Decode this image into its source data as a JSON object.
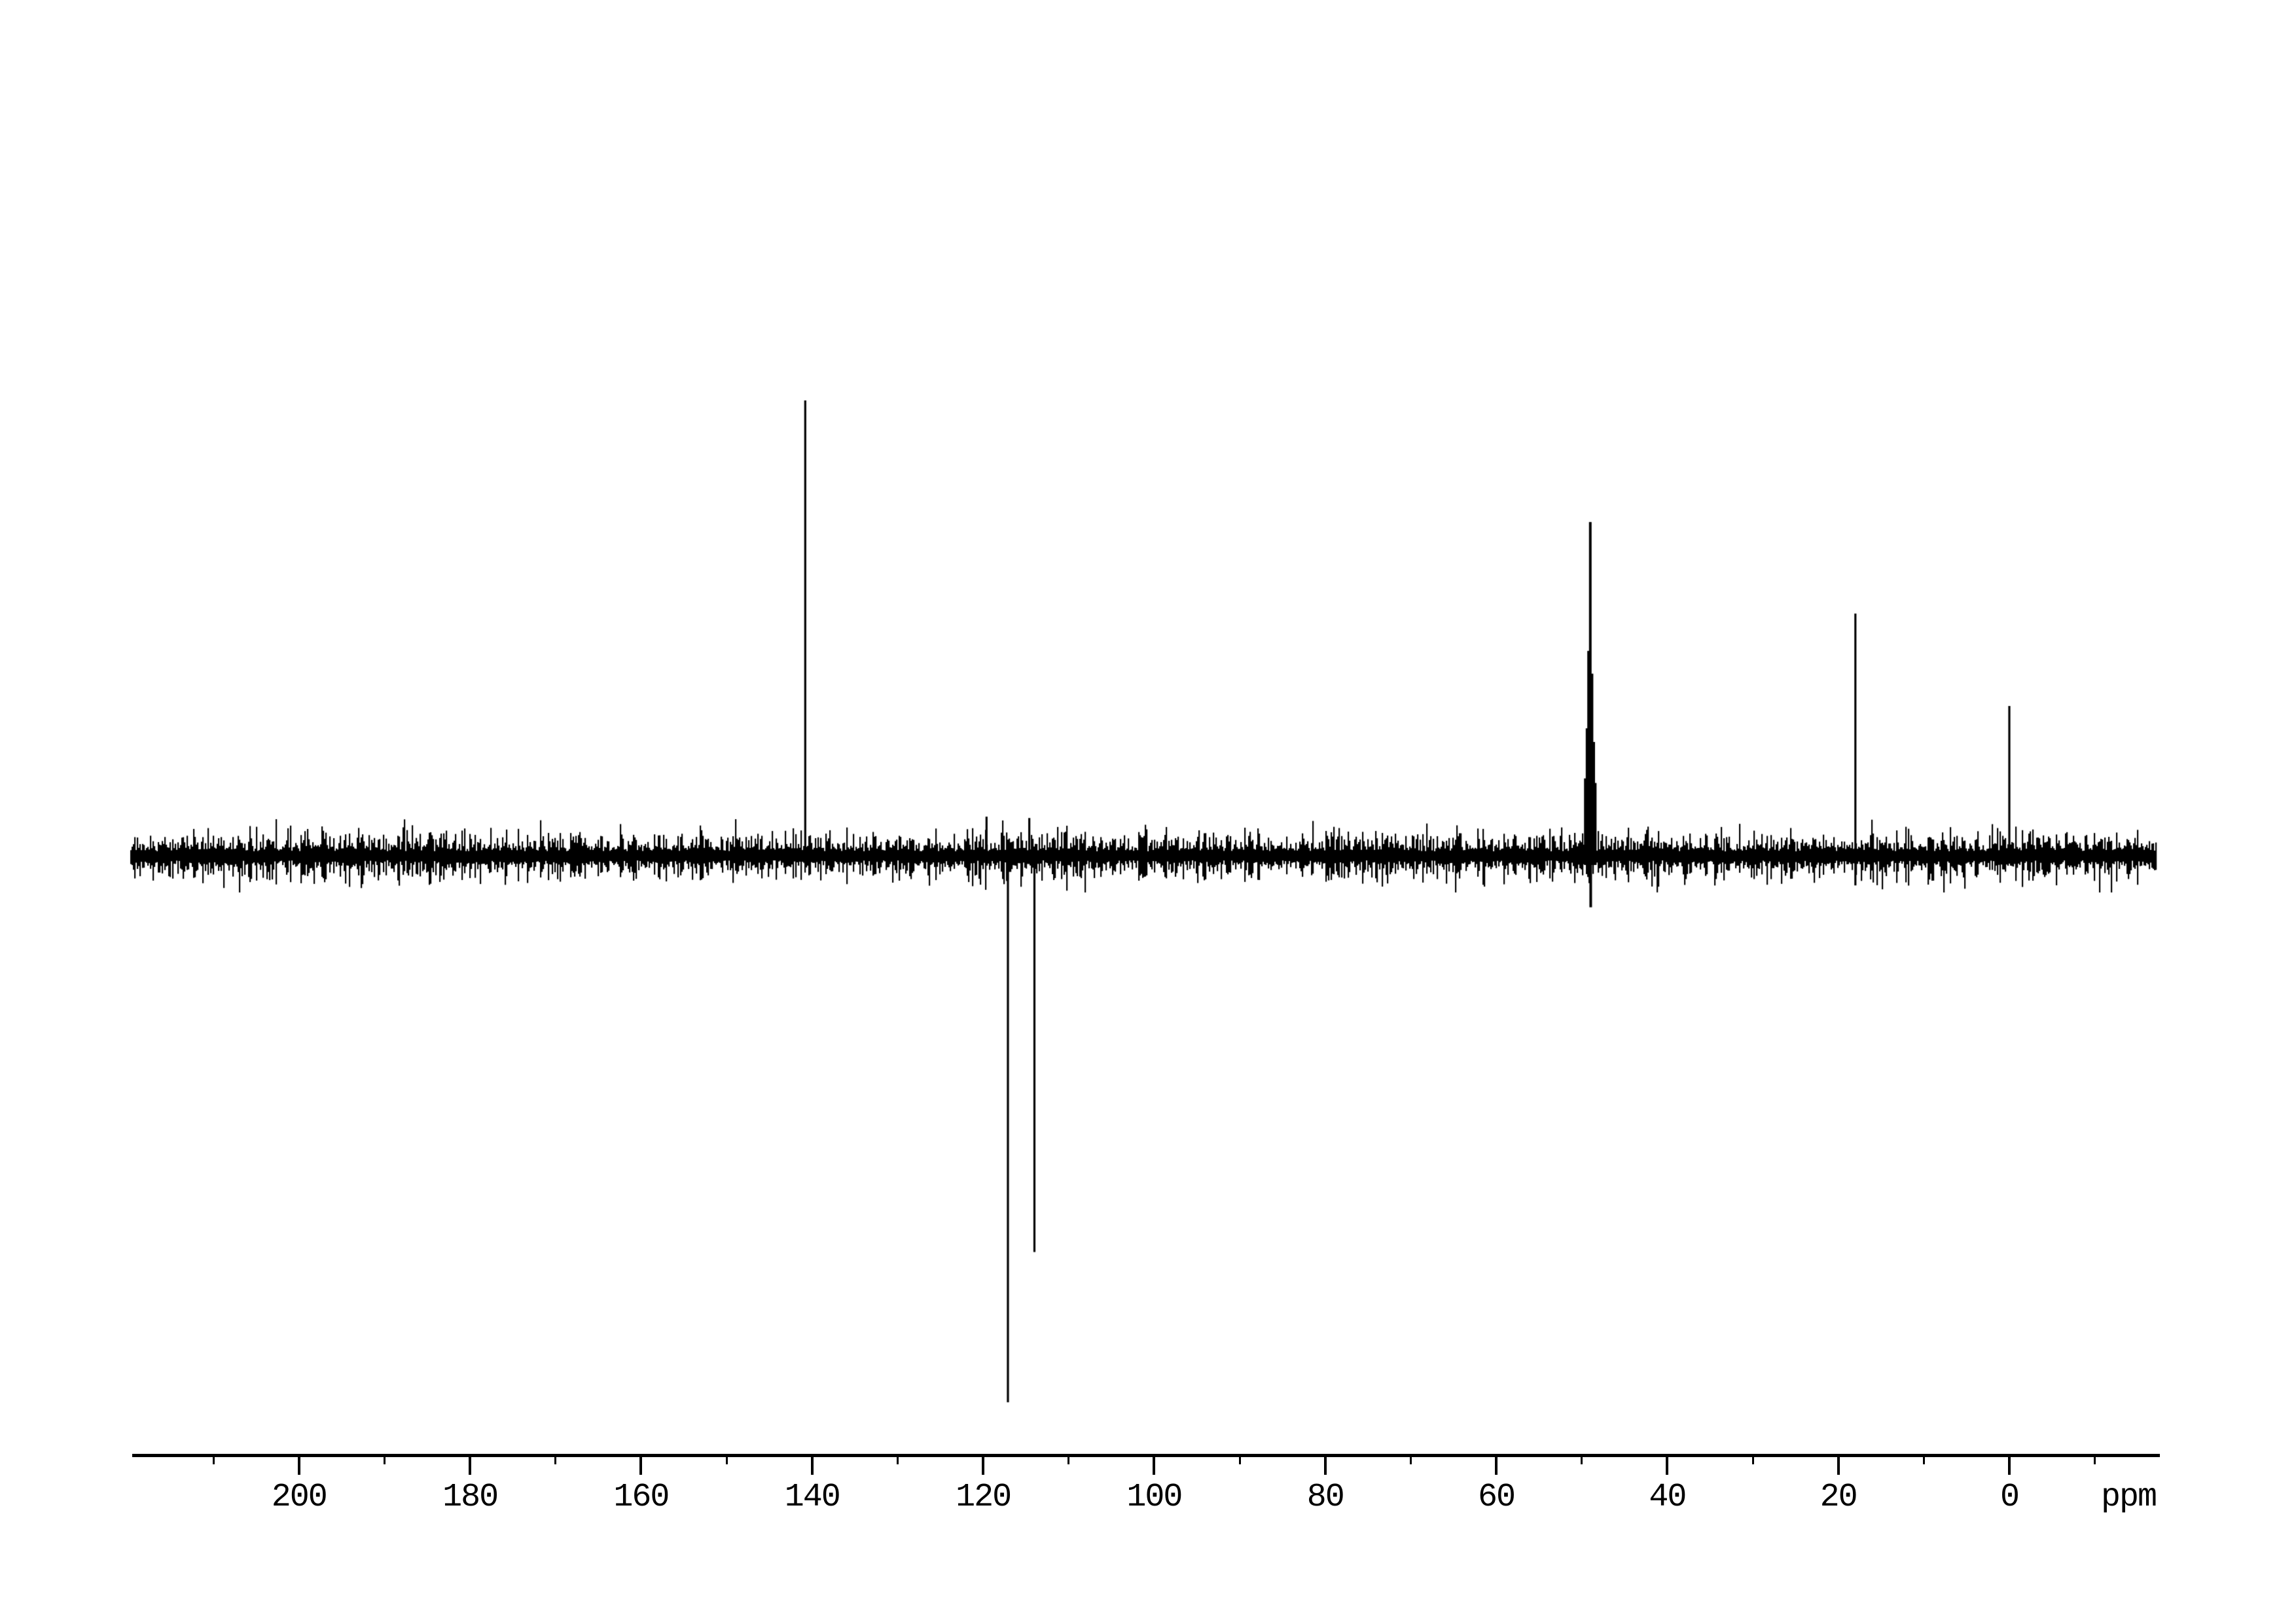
{
  "chart_data": {
    "type": "line",
    "subtype": "13C DEPT NMR spectrum",
    "title": "",
    "xlabel": "ppm",
    "ylabel": "",
    "x_axis": {
      "unit_label": "ppm",
      "range_ppm": [
        219.5,
        -17.6
      ],
      "direction": "values decrease to the right",
      "major_tick_labels": [
        200,
        180,
        160,
        140,
        120,
        100,
        80,
        60,
        40,
        20,
        0
      ],
      "minor_ticks": [
        210,
        190,
        170,
        150,
        130,
        110,
        90,
        70,
        50,
        30,
        10,
        -10
      ],
      "grid": false
    },
    "baseline": {
      "intensity": 0,
      "noise_amplitude_fraction": 0.045,
      "extent_ppm": [
        219.7,
        -17.1
      ]
    },
    "peaks": [
      {
        "ppm": 140.8,
        "intensity": 1.0,
        "direction": "up"
      },
      {
        "ppm": 119.6,
        "intensity": 0.086,
        "direction": "up"
      },
      {
        "ppm": 117.1,
        "intensity": -1.2,
        "direction": "down"
      },
      {
        "ppm": 114.6,
        "intensity": 0.083,
        "direction": "up"
      },
      {
        "ppm": 114.0,
        "intensity": -0.87,
        "direction": "down",
        "note": "second CH2 peak, pointing down"
      },
      {
        "ppm": 49.0,
        "intensity": 0.733,
        "direction": "up",
        "note": "solvent multiplet cluster with dispersive shape",
        "down_tail": -0.113,
        "lines": [
          {
            "dppm": 0.58,
            "intensity": 0.17
          },
          {
            "dppm": 0.38,
            "intensity": 0.28
          },
          {
            "dppm": 0.2,
            "intensity": 0.45
          },
          {
            "dppm": 0.0,
            "intensity": 0.733
          },
          {
            "dppm": -0.2,
            "intensity": 0.4
          },
          {
            "dppm": -0.4,
            "intensity": 0.25
          },
          {
            "dppm": -0.58,
            "intensity": 0.16
          }
        ]
      },
      {
        "ppm": 18.0,
        "intensity": 0.532,
        "direction": "up",
        "down_tail": -0.065
      },
      {
        "ppm": 0.0,
        "intensity": 0.329,
        "direction": "up",
        "note": "reference peak at 0 ppm"
      }
    ],
    "legend": null,
    "annotations": []
  },
  "colors": {
    "ink": "#000000",
    "background": "#ffffff"
  }
}
